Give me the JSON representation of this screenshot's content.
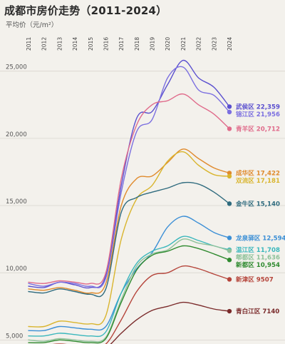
{
  "title": "成都市房价走势（2011-2024）",
  "unit": "平均价（元/m²）",
  "chart_data": {
    "type": "line",
    "x": [
      "2011",
      "2012",
      "2013",
      "2014",
      "2015",
      "2016",
      "2017",
      "2018",
      "2019",
      "2020",
      "2021",
      "2022",
      "2023",
      "2024"
    ],
    "yticks": [
      5000,
      10000,
      15000,
      20000,
      25000
    ],
    "ylim": [
      4700,
      27000
    ],
    "grid": true,
    "series": [
      {
        "name": "武侯区",
        "label": "武侯区 22,359",
        "color": "#5a4fcf",
        "values": [
          9000,
          8900,
          9300,
          9100,
          8900,
          9800,
          16500,
          21500,
          22000,
          24000,
          25800,
          24500,
          23800,
          22359
        ]
      },
      {
        "name": "锦江区",
        "label": "锦江区 21,956",
        "color": "#7b6fe0",
        "values": [
          9200,
          9000,
          9300,
          9200,
          9000,
          9600,
          16000,
          20500,
          21400,
          24500,
          25300,
          23600,
          23200,
          21956
        ]
      },
      {
        "name": "青羊区",
        "label": "青羊区 20,712",
        "color": "#e06b8b",
        "values": [
          9300,
          9200,
          9400,
          9300,
          9200,
          10000,
          17000,
          21000,
          22500,
          22800,
          23300,
          22500,
          21800,
          20712
        ]
      },
      {
        "name": "成华区",
        "label": "成华区 17,422",
        "color": "#e08a2c",
        "values": [
          8800,
          8700,
          8900,
          8700,
          8500,
          9200,
          15000,
          17000,
          17200,
          18200,
          19200,
          18500,
          17800,
          17422
        ]
      },
      {
        "name": "双流区",
        "label": "双流区 17,181",
        "color": "#d9b52e",
        "values": [
          6000,
          6000,
          6400,
          6300,
          6200,
          6800,
          12500,
          15500,
          16500,
          18300,
          19000,
          18000,
          17300,
          17181
        ]
      },
      {
        "name": "金牛区",
        "label": "金牛区 15,140",
        "color": "#2f6b7e",
        "values": [
          8600,
          8500,
          8800,
          8600,
          8400,
          8800,
          14500,
          15600,
          16000,
          16300,
          16700,
          16600,
          16000,
          15140
        ]
      },
      {
        "name": "龙泉驿区",
        "label": "龙泉驿区 12,594",
        "color": "#3b8fd6",
        "values": [
          5700,
          5700,
          6000,
          5900,
          5800,
          6000,
          8500,
          10300,
          11500,
          13400,
          14200,
          13700,
          13000,
          12594
        ]
      },
      {
        "name": "温江区",
        "label": "温江区 11,708",
        "color": "#3ab7bc",
        "values": [
          5300,
          5300,
          5500,
          5400,
          5300,
          5600,
          8500,
          10700,
          11600,
          12000,
          12700,
          12400,
          12000,
          11708
        ]
      },
      {
        "name": "郫都区",
        "label": "郫都区 11,636",
        "color": "#8fc29a",
        "values": [
          5000,
          4900,
          5100,
          5000,
          4900,
          5200,
          8000,
          10500,
          11400,
          11700,
          12500,
          12200,
          12000,
          11636
        ]
      },
      {
        "name": "新都区",
        "label": "新都区 10,954",
        "color": "#2f8a2f",
        "values": [
          4800,
          4800,
          5000,
          4900,
          4800,
          5100,
          7800,
          10200,
          11300,
          11600,
          12000,
          11800,
          11400,
          10954
        ]
      },
      {
        "name": "新津区",
        "label": "新津区 9507",
        "color": "#b5443a",
        "values": [
          4600,
          4600,
          4700,
          4600,
          4500,
          4700,
          6500,
          8600,
          9800,
          10000,
          10500,
          10300,
          9900,
          9507
        ]
      },
      {
        "name": "青白江区",
        "label": "青白江区 7140",
        "color": "#7a2a2a",
        "values": [
          4300,
          4300,
          4400,
          4300,
          4200,
          4400,
          5500,
          6500,
          7200,
          7500,
          7800,
          7600,
          7300,
          7140
        ]
      }
    ]
  }
}
